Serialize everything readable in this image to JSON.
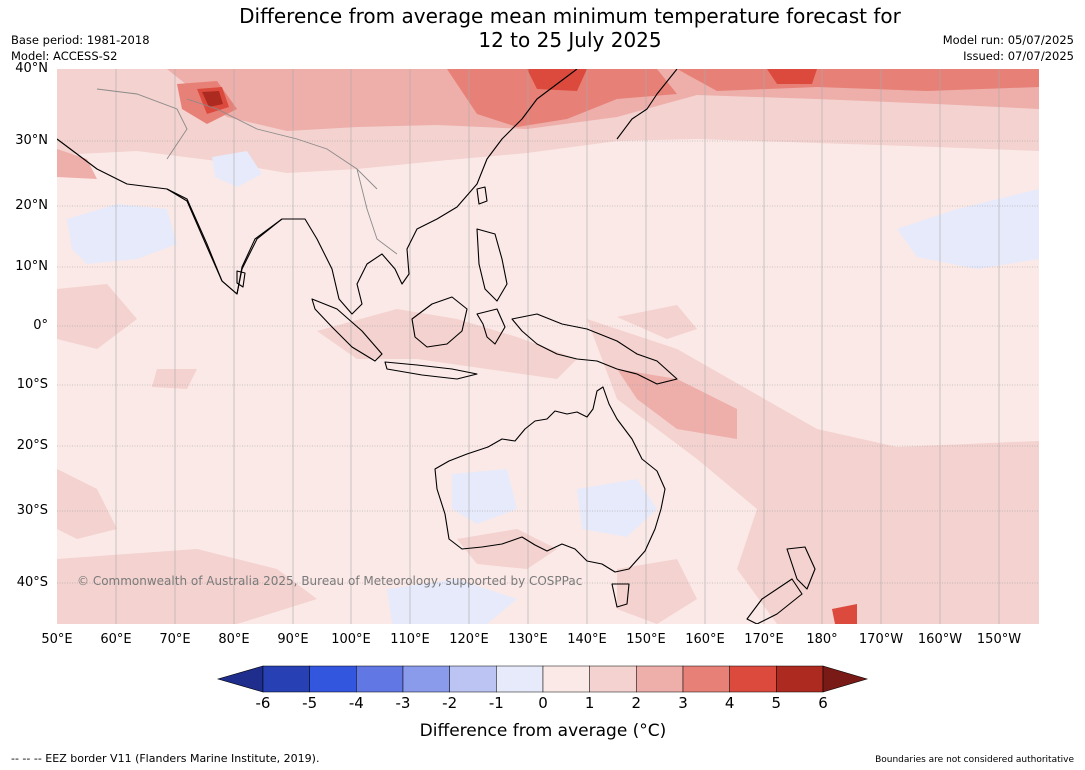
{
  "title": {
    "line1": "Difference from average mean minimum temperature forecast for",
    "line2": "12 to 25 July 2025"
  },
  "meta_left": {
    "base_period": "Base period: 1981-2018",
    "model": "Model: ACCESS-S2"
  },
  "meta_right": {
    "model_run": "Model run: 05/07/2025",
    "issued": "Issued: 07/07/2025"
  },
  "map": {
    "lat_labels": [
      "40°N",
      "30°N",
      "20°N",
      "10°N",
      "0°",
      "10°S",
      "20°S",
      "30°S",
      "40°S"
    ],
    "lon_labels": [
      "50°E",
      "60°E",
      "70°E",
      "80°E",
      "90°E",
      "100°E",
      "110°E",
      "120°E",
      "130°E",
      "140°E",
      "150°E",
      "160°E",
      "170°E",
      "180°",
      "170°W",
      "160°W",
      "150°W"
    ],
    "copyright": "© Commonwealth of Australia 2025, Bureau of Meteorology, supported by COSPPac",
    "colors": {
      "ocean_base": "#fbe9e7",
      "warm_1_2": "#f3d2cf",
      "warm_2_3": "#eeaeaa",
      "warm_3_4": "#e78177",
      "warm_4_5": "#dc4a3d",
      "warm_5_6": "#ad2a21",
      "cool_0_m1": "#e6eafa"
    }
  },
  "colorbar": {
    "ticks": [
      "-6",
      "-5",
      "-4",
      "-3",
      "-2",
      "-1",
      "0",
      "1",
      "2",
      "3",
      "4",
      "5",
      "6"
    ],
    "colors": [
      "#1f2d8c",
      "#2741b5",
      "#3356df",
      "#6077e4",
      "#8a9bec",
      "#bcc4f3",
      "#e6eafa",
      "#fbe9e7",
      "#f3d2cf",
      "#eeaeaa",
      "#e78177",
      "#dc4a3d",
      "#ad2a21",
      "#7a1a17"
    ],
    "label": "Difference from average (°C)"
  },
  "footer": {
    "left": "--  --  -- EEZ border V11 (Flanders Marine Institute, 2019).",
    "right": "Boundaries are not considered authoritative"
  }
}
